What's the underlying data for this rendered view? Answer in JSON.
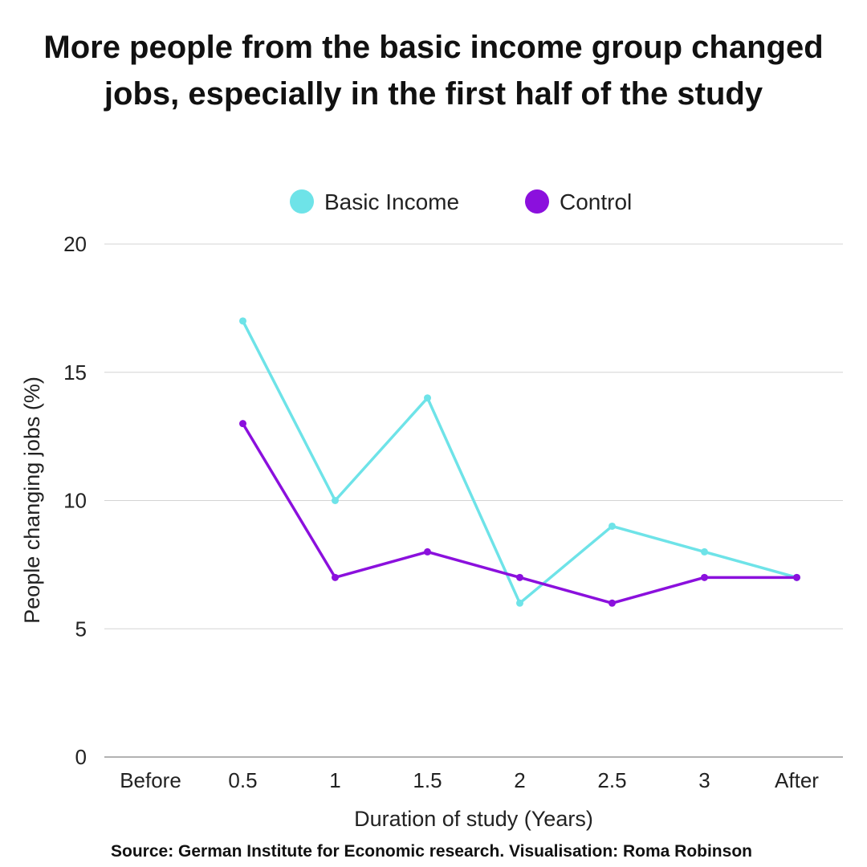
{
  "chart_data": {
    "type": "line",
    "title_lines": [
      "More people from the basic income group changed",
      "jobs, especially in the first half of the study"
    ],
    "xlabel": "Duration of study (Years)",
    "ylabel": "People changing jobs (%)",
    "categories": [
      "Before",
      "0.5",
      "1",
      "1.5",
      "2",
      "2.5",
      "3",
      "After"
    ],
    "ylim": [
      0,
      20
    ],
    "yticks": [
      "0",
      "5",
      "10",
      "15",
      "20"
    ],
    "grid": true,
    "legend_position": "top-center",
    "series": [
      {
        "name": "Basic Income",
        "color": "#6ee3e8",
        "values": [
          null,
          17,
          10,
          14,
          6,
          9,
          8,
          7
        ]
      },
      {
        "name": "Control",
        "color": "#8b10dd",
        "values": [
          null,
          13,
          7,
          8,
          7,
          6,
          7,
          7
        ]
      }
    ]
  },
  "source": "Source: German Institute for Economic research. Visualisation: Roma Robinson"
}
